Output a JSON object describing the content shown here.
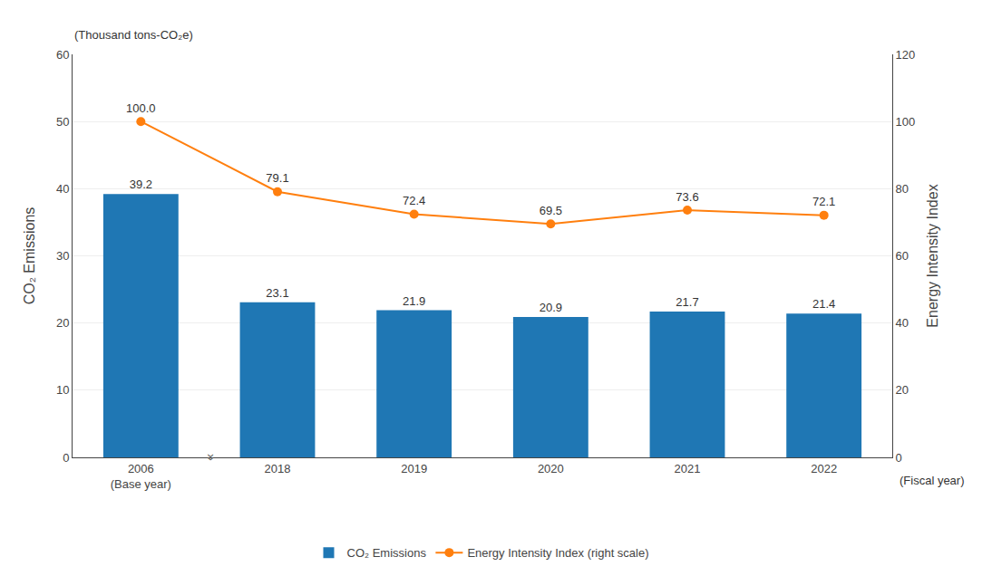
{
  "chart_data": {
    "type": "bar",
    "categories": [
      "2006\n(Base year)",
      "2018",
      "2019",
      "2020",
      "2021",
      "2022"
    ],
    "series": [
      {
        "name": "CO₂ Emissions",
        "type": "bar",
        "values": [
          39.2,
          23.1,
          21.9,
          20.9,
          21.7,
          21.4
        ]
      },
      {
        "name": "Energy Intensity Index (right scale)",
        "type": "line",
        "marker": "circle",
        "axis": "y2",
        "values": [
          100.0,
          79.1,
          72.4,
          69.5,
          73.6,
          72.1
        ],
        "value_labels": [
          "100.0",
          "79.1",
          "72.4",
          "69.5",
          "73.6",
          "72.1"
        ]
      }
    ],
    "ylabel": "CO₂ Emissions",
    "y2label": "Energy Intensity Index",
    "annotations": [
      "(Thousand tons-CO₂e)",
      "(Fiscal year)",
      "«"
    ],
    "ylim": [
      0,
      60
    ],
    "yticks": [
      0,
      10,
      20,
      30,
      40,
      50,
      60
    ],
    "y2lim": [
      0,
      120
    ],
    "y2ticks": [
      0,
      20,
      40,
      60,
      80,
      100,
      120
    ],
    "grid": true,
    "legend": "bottom",
    "data_labels": true
  }
}
